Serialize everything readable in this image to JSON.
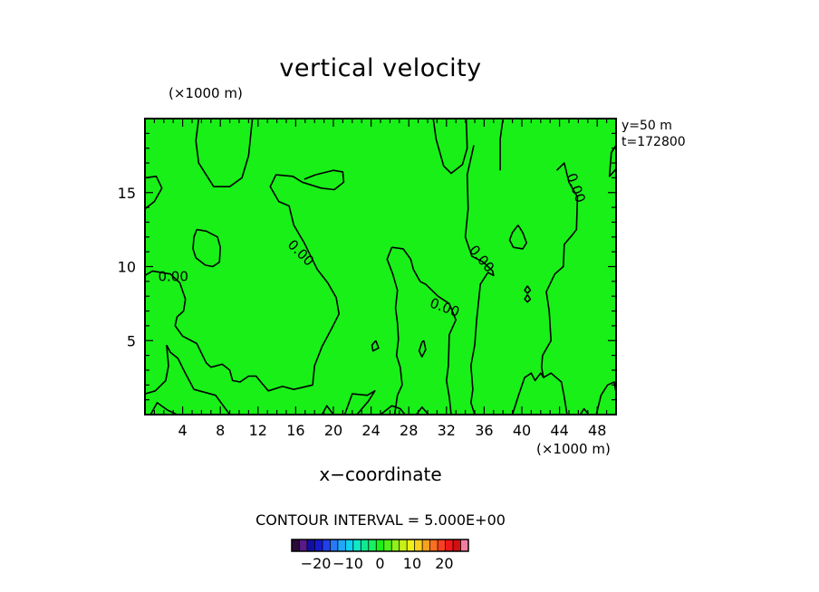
{
  "chart_data": {
    "type": "heatmap",
    "title": "vertical velocity",
    "x_unit_label": "(×1000 m)",
    "y_unit_label": "(×1000 m)",
    "xlabel": "x−coordinate",
    "info": [
      "y=50  m",
      "t=172800"
    ],
    "contour_interval_text": "CONTOUR INTERVAL = 5.000E+00",
    "xlim": [
      0,
      50
    ],
    "ylim": [
      0,
      20
    ],
    "x_ticks": [
      4,
      8,
      12,
      16,
      20,
      24,
      28,
      32,
      36,
      40,
      44,
      48
    ],
    "x_tick_labels": [
      "4",
      "8",
      "12",
      "16",
      "20",
      "24",
      "28",
      "32",
      "36",
      "40",
      "44",
      "48"
    ],
    "y_ticks": [
      5,
      10,
      15
    ],
    "y_tick_labels": [
      "5",
      "10",
      "15"
    ],
    "field_color": "#18f018",
    "contour_labels": [
      {
        "text": "0.00",
        "x": 3.0,
        "y": 9.3,
        "angle": 0
      },
      {
        "text": "0.00",
        "x": 16.5,
        "y": 10.9,
        "angle": 45
      },
      {
        "text": "0.00",
        "x": 31.8,
        "y": 7.2,
        "angle": 20
      },
      {
        "text": "0.00",
        "x": 35.7,
        "y": 10.5,
        "angle": 50
      },
      {
        "text": "0.00",
        "x": 45.7,
        "y": 15.3,
        "angle": 70
      }
    ],
    "contours": [
      [
        [
          5.7,
          20
        ],
        [
          5.4,
          18.5
        ],
        [
          5.7,
          17.0
        ],
        [
          7.3,
          15.4
        ],
        [
          9.0,
          15.4
        ],
        [
          10.3,
          16.0
        ],
        [
          11.0,
          17.5
        ],
        [
          11.4,
          20
        ]
      ],
      [
        [
          0,
          13.9
        ],
        [
          1.0,
          14.4
        ],
        [
          1.8,
          15.3
        ],
        [
          1.2,
          16.1
        ],
        [
          0,
          16.0
        ]
      ],
      [
        [
          0,
          9.4
        ],
        [
          0.8,
          9.7
        ],
        [
          2.7,
          9.5
        ],
        [
          3.7,
          8.9
        ],
        [
          4.3,
          7.8
        ],
        [
          4.1,
          7.0
        ],
        [
          3.4,
          6.6
        ],
        [
          3.2,
          6.0
        ],
        [
          4.0,
          5.3
        ],
        [
          5.5,
          4.8
        ],
        [
          6.5,
          3.5
        ],
        [
          7.0,
          3.2
        ],
        [
          8.2,
          3.4
        ],
        [
          9.0,
          3.0
        ],
        [
          9.3,
          2.3
        ],
        [
          10.1,
          2.2
        ],
        [
          11.0,
          2.6
        ],
        [
          11.8,
          2.6
        ],
        [
          12.3,
          2.2
        ],
        [
          13.1,
          1.6
        ],
        [
          14.6,
          1.9
        ],
        [
          15.8,
          1.7
        ],
        [
          17.8,
          2.0
        ],
        [
          18.0,
          3.3
        ],
        [
          18.8,
          4.6
        ],
        [
          19.8,
          5.8
        ],
        [
          20.6,
          6.8
        ],
        [
          20.3,
          7.9
        ],
        [
          19.4,
          8.9
        ],
        [
          18.3,
          9.8
        ],
        [
          16.9,
          11.6
        ],
        [
          15.8,
          12.8
        ],
        [
          15.3,
          14.1
        ],
        [
          14.2,
          14.4
        ],
        [
          13.3,
          15.4
        ],
        [
          13.9,
          16.2
        ],
        [
          15.7,
          16.1
        ],
        [
          16.7,
          15.7
        ],
        [
          18.7,
          15.3
        ],
        [
          20.1,
          15.2
        ],
        [
          21.1,
          15.7
        ],
        [
          21.0,
          16.4
        ],
        [
          20.0,
          16.5
        ],
        [
          18.1,
          16.2
        ],
        [
          16.9,
          15.9
        ]
      ],
      [
        [
          5.5,
          12.5
        ],
        [
          6.5,
          12.4
        ],
        [
          7.7,
          12.0
        ],
        [
          8.0,
          11.3
        ],
        [
          7.9,
          10.3
        ],
        [
          7.2,
          10.0
        ],
        [
          6.4,
          10.1
        ],
        [
          5.4,
          10.6
        ],
        [
          5.1,
          11.2
        ],
        [
          5.2,
          12.0
        ],
        [
          5.5,
          12.5
        ]
      ],
      [
        [
          2.3,
          4.7
        ],
        [
          2.7,
          4.2
        ],
        [
          3.5,
          3.8
        ],
        [
          4.2,
          2.9
        ],
        [
          5.2,
          1.7
        ],
        [
          7.5,
          1.3
        ],
        [
          9.0,
          0
        ]
      ],
      [
        [
          0,
          1.4
        ],
        [
          1.1,
          1.6
        ],
        [
          2.2,
          2.3
        ],
        [
          2.5,
          3.3
        ],
        [
          2.3,
          4.7
        ]
      ],
      [
        [
          0.6,
          0
        ],
        [
          1.3,
          0.8
        ],
        [
          2.4,
          0.3
        ],
        [
          3.4,
          0
        ]
      ],
      [
        [
          21.2,
          0
        ],
        [
          22.0,
          1.4
        ],
        [
          23.6,
          1.3
        ],
        [
          24.4,
          1.6
        ],
        [
          23.7,
          0.9
        ],
        [
          22.5,
          0
        ]
      ],
      [
        [
          25.0,
          0
        ],
        [
          26.2,
          0.6
        ],
        [
          27.1,
          0.4
        ],
        [
          27.6,
          0
        ]
      ],
      [
        [
          26.2,
          11.3
        ],
        [
          27.4,
          11.2
        ],
        [
          28.2,
          10.5
        ],
        [
          28.5,
          9.8
        ],
        [
          29.2,
          9.0
        ],
        [
          29.8,
          8.8
        ],
        [
          31.1,
          8.0
        ],
        [
          32.3,
          7.5
        ],
        [
          33.0,
          6.4
        ],
        [
          32.3,
          5.4
        ],
        [
          32.2,
          3.3
        ],
        [
          32.0,
          2.3
        ],
        [
          32.3,
          1.2
        ],
        [
          32.5,
          0
        ]
      ],
      [
        [
          26.2,
          11.3
        ],
        [
          25.7,
          10.5
        ],
        [
          26.3,
          9.5
        ],
        [
          26.8,
          8.4
        ],
        [
          26.6,
          7.2
        ],
        [
          26.8,
          6.2
        ],
        [
          26.9,
          5.1
        ],
        [
          26.7,
          4.0
        ],
        [
          27.1,
          3.2
        ],
        [
          27.3,
          2.0
        ],
        [
          26.8,
          1.3
        ],
        [
          26.5,
          0
        ]
      ],
      [
        [
          24.5,
          5.0
        ],
        [
          24.8,
          4.5
        ],
        [
          24.2,
          4.3
        ],
        [
          24.1,
          4.7
        ],
        [
          24.5,
          5.0
        ]
      ],
      [
        [
          29.6,
          5.0
        ],
        [
          29.8,
          4.4
        ],
        [
          29.4,
          3.9
        ],
        [
          29.1,
          4.3
        ],
        [
          29.4,
          4.9
        ],
        [
          29.6,
          5.0
        ]
      ],
      [
        [
          30.6,
          20
        ],
        [
          30.9,
          18.6
        ],
        [
          31.7,
          16.8
        ],
        [
          32.5,
          16.3
        ],
        [
          33.7,
          16.9
        ],
        [
          34.2,
          18.0
        ],
        [
          34.1,
          20
        ]
      ],
      [
        [
          34.9,
          18.2
        ],
        [
          34.2,
          16.2
        ],
        [
          34.3,
          13.9
        ],
        [
          34.0,
          12.0
        ],
        [
          34.7,
          10.7
        ],
        [
          35.9,
          10.3
        ],
        [
          36.9,
          9.7
        ],
        [
          37.0,
          9.4
        ],
        [
          36.4,
          9.6
        ],
        [
          35.6,
          8.8
        ],
        [
          35.2,
          6.4
        ],
        [
          35.0,
          4.7
        ],
        [
          34.6,
          3.3
        ],
        [
          34.8,
          1.7
        ],
        [
          34.6,
          0.8
        ],
        [
          35.0,
          0
        ]
      ],
      [
        [
          38.0,
          20
        ],
        [
          37.7,
          18.6
        ],
        [
          37.7,
          16.5
        ]
      ],
      [
        [
          39.6,
          12.8
        ],
        [
          40.1,
          12.3
        ],
        [
          40.5,
          11.6
        ],
        [
          40.1,
          11.2
        ],
        [
          39.1,
          11.3
        ],
        [
          38.7,
          11.8
        ],
        [
          39.0,
          12.3
        ],
        [
          39.6,
          12.8
        ]
      ],
      [
        [
          40.6,
          8.7
        ],
        [
          40.9,
          8.4
        ],
        [
          40.6,
          8.2
        ],
        [
          40.3,
          8.4
        ],
        [
          40.6,
          8.7
        ]
      ],
      [
        [
          40.6,
          8.1
        ],
        [
          40.9,
          7.8
        ],
        [
          40.6,
          7.6
        ],
        [
          40.3,
          7.8
        ],
        [
          40.6,
          8.1
        ]
      ],
      [
        [
          43.7,
          16.5
        ],
        [
          44.5,
          17.0
        ],
        [
          45.0,
          15.7
        ],
        [
          45.9,
          14.7
        ],
        [
          45.8,
          12.5
        ],
        [
          45.3,
          12.1
        ],
        [
          44.5,
          11.5
        ],
        [
          44.4,
          10.0
        ],
        [
          43.5,
          9.5
        ],
        [
          42.6,
          8.3
        ],
        [
          42.9,
          7.0
        ],
        [
          43.1,
          5.0
        ],
        [
          42.2,
          4.0
        ],
        [
          42.1,
          3.2
        ],
        [
          42.3,
          2.5
        ]
      ],
      [
        [
          39.0,
          0
        ],
        [
          39.7,
          1.4
        ],
        [
          40.3,
          2.5
        ],
        [
          41.0,
          2.8
        ],
        [
          41.4,
          2.3
        ],
        [
          42.0,
          2.8
        ],
        [
          42.3,
          2.5
        ],
        [
          43.1,
          2.8
        ],
        [
          44.2,
          2.2
        ],
        [
          44.5,
          1.2
        ],
        [
          44.8,
          0
        ]
      ],
      [
        [
          47.9,
          0
        ],
        [
          48.4,
          1.3
        ],
        [
          49.1,
          2.0
        ],
        [
          49.8,
          2.2
        ],
        [
          50,
          1.5
        ]
      ],
      [
        [
          46.2,
          0
        ],
        [
          46.6,
          0.4
        ],
        [
          47.1,
          0
        ]
      ],
      [
        [
          50,
          16.6
        ],
        [
          49.3,
          16.1
        ],
        [
          49.5,
          17.7
        ],
        [
          50,
          18.2
        ]
      ],
      [
        [
          18.8,
          0
        ],
        [
          19.3,
          0.6
        ],
        [
          20.0,
          0
        ]
      ],
      [
        [
          28.8,
          0
        ],
        [
          29.4,
          0.5
        ],
        [
          30.1,
          0
        ]
      ]
    ],
    "colorbar": {
      "colors": [
        "#2a0a3a",
        "#5a1a8a",
        "#1010a0",
        "#1818c8",
        "#2040e8",
        "#2878f8",
        "#20a8f8",
        "#10d0f0",
        "#10e8c8",
        "#10e890",
        "#18f060",
        "#18f018",
        "#50f018",
        "#90f018",
        "#c8f018",
        "#f0f018",
        "#f8d020",
        "#f8a020",
        "#f87020",
        "#f84020",
        "#f01818",
        "#d01010",
        "#f080a0"
      ],
      "tick_labels": [
        "−20",
        "−10",
        "0",
        "10",
        "20"
      ],
      "tick_values": [
        -20,
        -10,
        0,
        10,
        20
      ],
      "range": [
        -27.5,
        27.5
      ]
    }
  }
}
